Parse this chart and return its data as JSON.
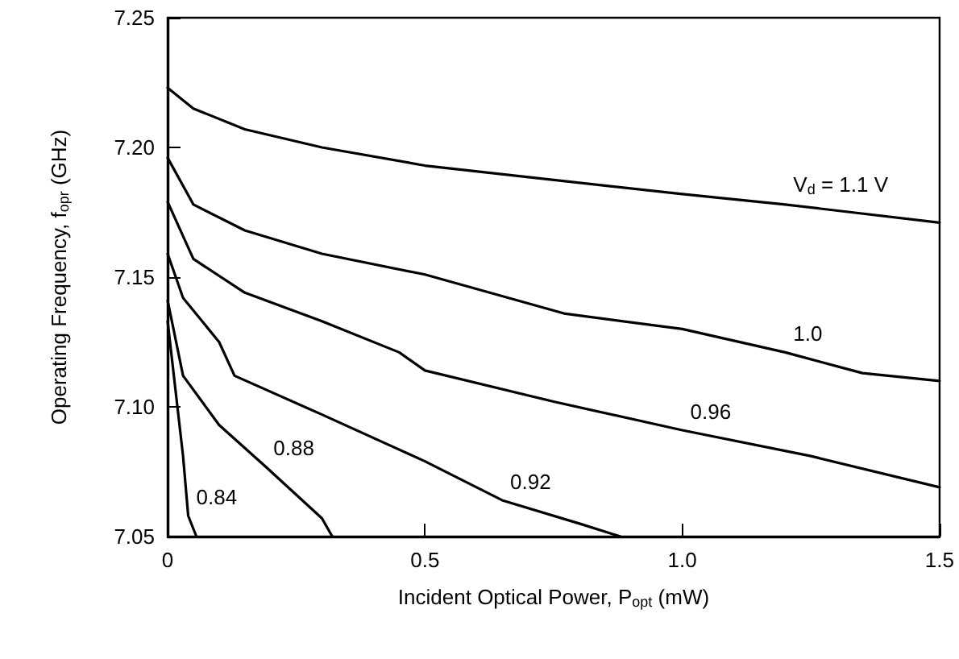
{
  "chart_data": {
    "type": "line",
    "xlabel": "Incident Optical Power, P$_{opt}$ (mW)",
    "ylabel": "Operating Frequency, f$_{opr}$ (GHz)",
    "xlim": [
      0,
      1.5
    ],
    "xticks": [
      {
        "value": 0,
        "label": "0"
      },
      {
        "value": 0.5,
        "label": "0.5"
      },
      {
        "value": 1,
        "label": "1.0"
      },
      {
        "value": 1.5,
        "label": "1.5"
      }
    ],
    "ylim": [
      7.05,
      7.25
    ],
    "yticks": [
      {
        "value": 7.05,
        "label": "7.05"
      },
      {
        "value": 7.1,
        "label": "7.10"
      },
      {
        "value": 7.15,
        "label": "7.15"
      },
      {
        "value": 7.2,
        "label": "7.20"
      },
      {
        "value": 7.25,
        "label": "7.25"
      }
    ],
    "grid": false,
    "marker": "none",
    "line_style": "solid",
    "series": [
      {
        "color": "#000000",
        "x": [
          0,
          0.05,
          0.15,
          0.3,
          0.5,
          1.0,
          1.2,
          1.5
        ],
        "values": [
          7.223,
          7.215,
          7.207,
          7.2,
          7.193,
          7.182,
          7.178,
          7.171
        ]
      },
      {
        "color": "#000000",
        "x": [
          0,
          0.05,
          0.15,
          0.3,
          0.5,
          0.77,
          1.0,
          1.2,
          1.35,
          1.5
        ],
        "values": [
          7.196,
          7.178,
          7.168,
          7.159,
          7.151,
          7.136,
          7.13,
          7.121,
          7.113,
          7.11
        ]
      },
      {
        "color": "#000000",
        "x": [
          0,
          0.05,
          0.15,
          0.3,
          0.45,
          0.5,
          0.75,
          1.0,
          1.25,
          1.5
        ],
        "values": [
          7.179,
          7.157,
          7.144,
          7.133,
          7.121,
          7.114,
          7.102,
          7.091,
          7.081,
          7.069
        ]
      },
      {
        "color": "#000000",
        "x": [
          0,
          0.03,
          0.1,
          0.13,
          0.3,
          0.5,
          0.65,
          0.8,
          0.88
        ],
        "values": [
          7.159,
          7.142,
          7.125,
          7.112,
          7.097,
          7.079,
          7.064,
          7.055,
          7.05
        ]
      },
      {
        "color": "#000000",
        "x": [
          0,
          0.03,
          0.1,
          0.19,
          0.3,
          0.32
        ],
        "values": [
          7.141,
          7.112,
          7.093,
          7.077,
          7.057,
          7.05
        ]
      },
      {
        "color": "#000000",
        "x": [
          0,
          0.03,
          0.04,
          0.056
        ],
        "values": [
          7.133,
          7.081,
          7.058,
          7.05
        ]
      }
    ],
    "annotations": [
      {
        "text": "V$_{d}$ = 1.1 V",
        "x": 1.2,
        "y": 7.178
      },
      {
        "text": "1.0",
        "x": 1.2,
        "y": 7.121
      },
      {
        "text": "0.96",
        "x": 1.0,
        "y": 7.091
      },
      {
        "text": "0.92",
        "x": 0.65,
        "y": 7.064
      },
      {
        "text": "0.88",
        "x": 0.19,
        "y": 7.077
      },
      {
        "text": "0.84",
        "x": 0.04,
        "y": 7.058
      }
    ]
  }
}
